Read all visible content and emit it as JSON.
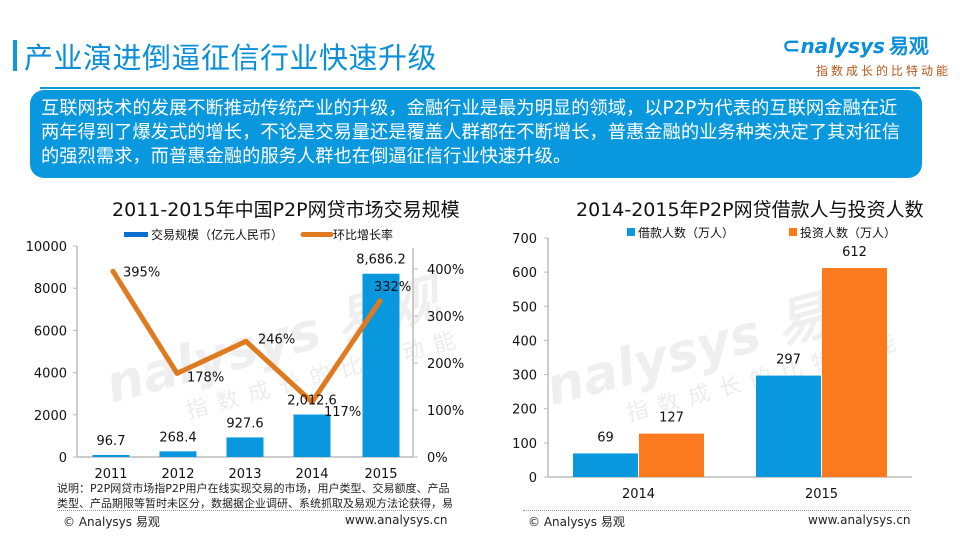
{
  "header": {
    "title": "产业演进倒逼征信行业快速升级",
    "logo_text": "nalysys",
    "logo_cn": "易观",
    "logo_slogan": "指数成长的比特动能"
  },
  "intro": {
    "text": "互联网技术的发展不断推动传统产业的升级，金融行业是最为明显的领域，以P2P为代表的互联网金融在近两年得到了爆发式的增长，不论是交易量还是覆盖人群都在不断增长，普惠金融的业务种类决定了其对征信的强烈需求，而普惠金融的服务人群也在倒逼征信行业快速升级。"
  },
  "colors": {
    "accent": "#0a9ae0",
    "bar_blue": "#0997de",
    "line_orange": "#e07a1f",
    "bar_orange": "#fb7a1d"
  },
  "watermark": {
    "text": "nalysys 易观",
    "slogan": "指数成长的比特动能"
  },
  "chart_data": [
    {
      "type": "bar",
      "title": "2011-2015年中国P2P网贷市场交易规模",
      "categories": [
        "2011",
        "2012",
        "2013",
        "2014",
        "2015"
      ],
      "series": [
        {
          "name": "交易规模（亿元人民币）",
          "type": "bar",
          "axis": "left",
          "values": [
            96.7,
            268.4,
            927.6,
            2012.6,
            8686.2
          ],
          "labels": [
            "96.7",
            "268.4",
            "927.6",
            "2,012.6",
            "8,686.2"
          ]
        },
        {
          "name": "环比增长率",
          "type": "line",
          "axis": "right",
          "values": [
            395,
            178,
            246,
            117,
            332
          ],
          "labels": [
            "395%",
            "178%",
            "246%",
            "117%",
            "332%"
          ]
        }
      ],
      "left_axis": {
        "ylim": [
          0,
          10000
        ],
        "ticks": [
          "0",
          "2000",
          "4000",
          "6000",
          "8000",
          "10000"
        ],
        "tick_values": [
          0,
          2000,
          4000,
          6000,
          8000,
          10000
        ]
      },
      "right_axis": {
        "ylim": [
          0,
          400
        ],
        "ticks": [
          "0%",
          "100%",
          "200%",
          "300%",
          "400%"
        ],
        "tick_values": [
          0,
          100,
          200,
          300,
          400
        ]
      },
      "legend": "top",
      "grid": false,
      "note": "说明：P2P网贷市场指P2P用户在线实现交易的市场，用户类型、交易额度、产品类型、产品期限等暂时未区分，数据据企业调研、系统抓取及易观方法论获得，易",
      "footer_left": "© Analysys 易观",
      "footer_right": "www.analysys.cn"
    },
    {
      "type": "bar",
      "title": "2014-2015年P2P网贷借款人与投资人数",
      "categories": [
        "2014",
        "2015"
      ],
      "series": [
        {
          "name": "借款人数（万人）",
          "values": [
            69,
            297
          ],
          "labels": [
            "69",
            "297"
          ]
        },
        {
          "name": "投资人数（万人）",
          "values": [
            127,
            612
          ],
          "labels": [
            "127",
            "612"
          ]
        }
      ],
      "left_axis": {
        "ylim": [
          0,
          700
        ],
        "ticks": [
          "0",
          "100",
          "200",
          "300",
          "400",
          "500",
          "600",
          "700"
        ],
        "tick_values": [
          0,
          100,
          200,
          300,
          400,
          500,
          600,
          700
        ]
      },
      "legend": "top",
      "grid": false,
      "footer_left": "© Analysys 易观",
      "footer_right": "www.analysys.cn"
    }
  ]
}
